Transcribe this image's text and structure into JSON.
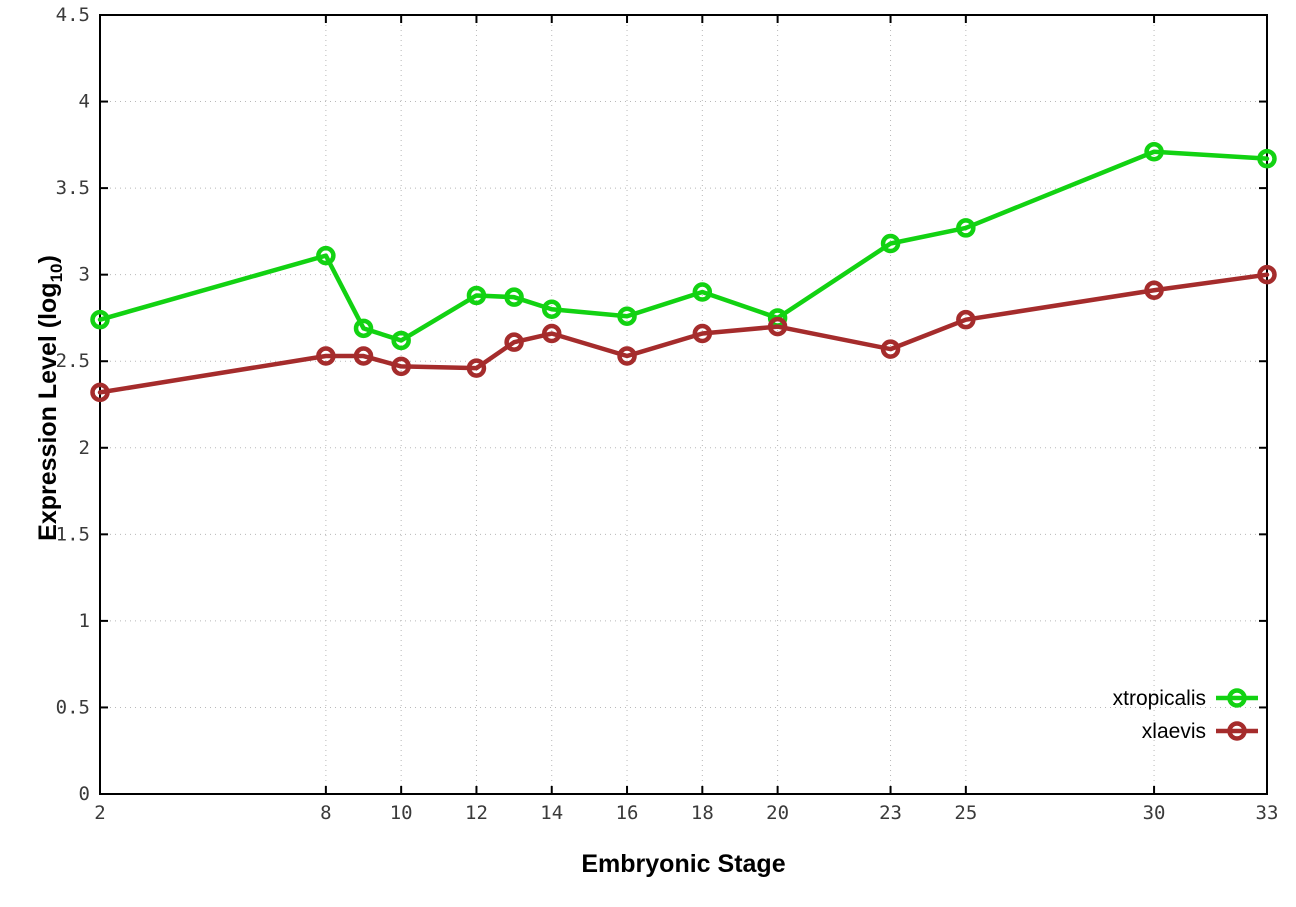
{
  "chart_data": {
    "type": "line",
    "x": [
      2,
      8,
      9,
      10,
      12,
      13,
      14,
      16,
      18,
      20,
      23,
      25,
      30,
      33
    ],
    "series": [
      {
        "name": "xtropicalis",
        "color": "#12d212",
        "values": [
          2.74,
          3.11,
          2.69,
          2.62,
          2.88,
          2.87,
          2.8,
          2.76,
          2.9,
          2.75,
          3.18,
          3.27,
          3.71,
          3.67
        ]
      },
      {
        "name": "xlaevis",
        "color": "#a52c2c",
        "values": [
          2.32,
          2.53,
          2.53,
          2.47,
          2.46,
          2.61,
          2.66,
          2.53,
          2.66,
          2.7,
          2.57,
          2.74,
          2.91,
          3.0
        ]
      }
    ],
    "xticks": [
      2,
      8,
      10,
      12,
      14,
      16,
      18,
      20,
      23,
      25,
      30,
      33
    ],
    "yticks": [
      0,
      0.5,
      1,
      1.5,
      2,
      2.5,
      3,
      3.5,
      4,
      4.5
    ],
    "xlim": [
      2,
      33
    ],
    "ylim": [
      0,
      4.5
    ],
    "xlabel": "Embryonic Stage",
    "ylabel": "Expression Level (log10)",
    "ylabel_parts": {
      "main": "Expression Level (log",
      "sub": "10",
      "close": ")"
    },
    "grid": true,
    "legend_position": "bottom-right",
    "colors": {
      "axis": "#000000",
      "grid": "#b8b8b8",
      "tick_label": "#3a3a3a",
      "background": "#ffffff"
    }
  }
}
